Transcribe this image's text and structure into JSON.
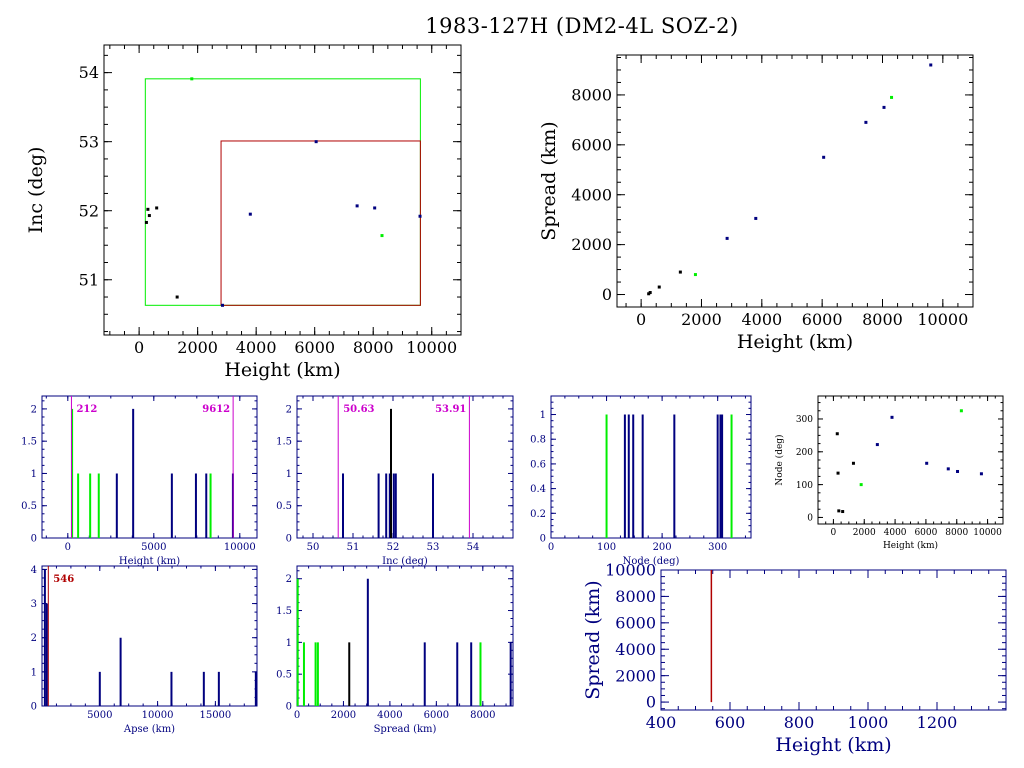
{
  "title": "1983-127H (DM2-4L SOZ-2)",
  "colors": {
    "black": "#000000",
    "blue": "#00007f",
    "green": "#00ee00",
    "red": "#b00000",
    "magenta": "#cc00cc",
    "axis_blue": "#00007f"
  },
  "chart_data": [
    {
      "id": "inc_height",
      "type": "scatter",
      "xlabel": "Height (km)",
      "ylabel": "Inc (deg)",
      "xlim": [
        -1200,
        11000
      ],
      "ylim": [
        50.2,
        54.4
      ],
      "xticks": [
        0,
        2000,
        4000,
        6000,
        8000,
        10000
      ],
      "yticks": [
        51,
        52,
        53,
        54
      ],
      "points": [
        {
          "x": 250,
          "y": 51.83,
          "c": "black"
        },
        {
          "x": 300,
          "y": 52.02,
          "c": "black"
        },
        {
          "x": 350,
          "y": 51.93,
          "c": "black"
        },
        {
          "x": 600,
          "y": 52.04,
          "c": "black"
        },
        {
          "x": 1300,
          "y": 50.75,
          "c": "black"
        },
        {
          "x": 1800,
          "y": 53.91,
          "c": "green"
        },
        {
          "x": 2850,
          "y": 50.63,
          "c": "blue"
        },
        {
          "x": 3800,
          "y": 51.95,
          "c": "blue"
        },
        {
          "x": 6050,
          "y": 53.0,
          "c": "blue"
        },
        {
          "x": 7450,
          "y": 52.07,
          "c": "blue"
        },
        {
          "x": 8050,
          "y": 52.04,
          "c": "blue"
        },
        {
          "x": 8300,
          "y": 51.64,
          "c": "green"
        },
        {
          "x": 9600,
          "y": 51.92,
          "c": "blue"
        }
      ],
      "boxes": [
        {
          "x0": 212,
          "x1": 9612,
          "y0": 50.63,
          "y1": 53.91,
          "c": "green"
        },
        {
          "x0": 2800,
          "x1": 9612,
          "y0": 50.63,
          "y1": 53.01,
          "c": "red"
        }
      ]
    },
    {
      "id": "spread_height",
      "type": "scatter",
      "xlabel": "Height (km)",
      "ylabel": "Spread (km)",
      "xlim": [
        -800,
        11000
      ],
      "ylim": [
        -500,
        9600
      ],
      "xticks": [
        0,
        2000,
        4000,
        6000,
        8000,
        10000
      ],
      "yticks": [
        0,
        2000,
        4000,
        6000,
        8000
      ],
      "points": [
        {
          "x": 250,
          "y": 30,
          "c": "black"
        },
        {
          "x": 300,
          "y": 80,
          "c": "black"
        },
        {
          "x": 600,
          "y": 300,
          "c": "black"
        },
        {
          "x": 1300,
          "y": 900,
          "c": "black"
        },
        {
          "x": 1800,
          "y": 800,
          "c": "green"
        },
        {
          "x": 2850,
          "y": 2250,
          "c": "blue"
        },
        {
          "x": 3800,
          "y": 3050,
          "c": "blue"
        },
        {
          "x": 6050,
          "y": 5500,
          "c": "blue"
        },
        {
          "x": 7450,
          "y": 6900,
          "c": "blue"
        },
        {
          "x": 8050,
          "y": 7500,
          "c": "blue"
        },
        {
          "x": 8300,
          "y": 7900,
          "c": "green"
        },
        {
          "x": 9600,
          "y": 9200,
          "c": "blue"
        }
      ]
    },
    {
      "id": "hist_height",
      "type": "bar",
      "xlabel": "Height (km)",
      "xlim": [
        -1500,
        11000
      ],
      "ylim": [
        0,
        2.2
      ],
      "xticks": [
        0,
        5000,
        10000
      ],
      "yticks": [
        0,
        0.5,
        1,
        1.5,
        2
      ],
      "ytick_labels": [
        "0",
        "0.5",
        "1",
        "1.5",
        "2"
      ],
      "bars": [
        {
          "x": 250,
          "h": 2,
          "c": "green"
        },
        {
          "x": 600,
          "h": 1,
          "c": "green"
        },
        {
          "x": 1300,
          "h": 1,
          "c": "green"
        },
        {
          "x": 1800,
          "h": 1,
          "c": "green"
        },
        {
          "x": 2850,
          "h": 1,
          "c": "blue"
        },
        {
          "x": 3800,
          "h": 2,
          "c": "blue"
        },
        {
          "x": 6050,
          "h": 1,
          "c": "blue"
        },
        {
          "x": 7450,
          "h": 1,
          "c": "blue"
        },
        {
          "x": 8050,
          "h": 1,
          "c": "blue"
        },
        {
          "x": 8300,
          "h": 1,
          "c": "green"
        },
        {
          "x": 9600,
          "h": 1,
          "c": "blue"
        }
      ],
      "markers": [
        {
          "x": 212,
          "label": "212",
          "c": "magenta"
        },
        {
          "x": 9612,
          "label": "9612",
          "c": "magenta"
        }
      ]
    },
    {
      "id": "hist_inc",
      "type": "bar",
      "xlabel": "Inc (deg)",
      "xlim": [
        49.6,
        55.0
      ],
      "ylim": [
        0,
        2.2
      ],
      "xticks": [
        50,
        51,
        52,
        53,
        54
      ],
      "yticks": [
        0,
        0.5,
        1,
        1.5,
        2
      ],
      "ytick_labels": [
        "0",
        "0.5",
        "1",
        "1.5",
        "2"
      ],
      "bars": [
        {
          "x": 50.75,
          "h": 1,
          "c": "blue"
        },
        {
          "x": 51.64,
          "h": 1,
          "c": "blue"
        },
        {
          "x": 51.83,
          "h": 1,
          "c": "blue"
        },
        {
          "x": 51.92,
          "h": 1,
          "c": "blue"
        },
        {
          "x": 51.95,
          "h": 2,
          "c": "black"
        },
        {
          "x": 52.02,
          "h": 1,
          "c": "blue"
        },
        {
          "x": 52.07,
          "h": 1,
          "c": "blue"
        },
        {
          "x": 53.0,
          "h": 1,
          "c": "blue"
        }
      ],
      "markers": [
        {
          "x": 50.63,
          "label": "50.63",
          "c": "magenta"
        },
        {
          "x": 53.91,
          "label": "53.91",
          "c": "magenta"
        }
      ]
    },
    {
      "id": "hist_node",
      "type": "bar",
      "xlabel": "Node (deg)",
      "xlim": [
        0,
        360
      ],
      "ylim": [
        0,
        1.15
      ],
      "xticks": [
        0,
        100,
        200,
        300
      ],
      "yticks": [
        0,
        0.2,
        0.4,
        0.6,
        0.8,
        1
      ],
      "ytick_labels": [
        "0",
        "0.2",
        "0.4",
        "0.6",
        "0.8",
        "1"
      ],
      "bars": [
        {
          "x": 100,
          "h": 1,
          "c": "green"
        },
        {
          "x": 133,
          "h": 1,
          "c": "blue"
        },
        {
          "x": 140,
          "h": 1,
          "c": "blue"
        },
        {
          "x": 148,
          "h": 1,
          "c": "blue"
        },
        {
          "x": 165,
          "h": 1,
          "c": "blue"
        },
        {
          "x": 222,
          "h": 1,
          "c": "blue"
        },
        {
          "x": 300,
          "h": 1,
          "c": "blue"
        },
        {
          "x": 305,
          "h": 1,
          "c": "blue"
        },
        {
          "x": 308,
          "h": 1,
          "c": "blue"
        },
        {
          "x": 325,
          "h": 1,
          "c": "green"
        }
      ]
    },
    {
      "id": "node_height",
      "type": "scatter",
      "xlabel": "Height (km)",
      "ylabel": "Node (deg)",
      "xlim": [
        -1000,
        11000
      ],
      "ylim": [
        -20,
        370
      ],
      "xticks": [
        0,
        2000,
        4000,
        6000,
        8000,
        10000
      ],
      "yticks": [
        0,
        100,
        200,
        300
      ],
      "points": [
        {
          "x": 250,
          "y": 255,
          "c": "black"
        },
        {
          "x": 300,
          "y": 135,
          "c": "black"
        },
        {
          "x": 350,
          "y": 20,
          "c": "black"
        },
        {
          "x": 600,
          "y": 18,
          "c": "black"
        },
        {
          "x": 1300,
          "y": 165,
          "c": "black"
        },
        {
          "x": 1800,
          "y": 100,
          "c": "green"
        },
        {
          "x": 2850,
          "y": 222,
          "c": "blue"
        },
        {
          "x": 3800,
          "y": 305,
          "c": "blue"
        },
        {
          "x": 6050,
          "y": 165,
          "c": "blue"
        },
        {
          "x": 7450,
          "y": 148,
          "c": "blue"
        },
        {
          "x": 8050,
          "y": 140,
          "c": "blue"
        },
        {
          "x": 8300,
          "y": 325,
          "c": "green"
        },
        {
          "x": 9600,
          "y": 133,
          "c": "blue"
        }
      ]
    },
    {
      "id": "hist_apse",
      "type": "bar",
      "xlabel": "Apse (km)",
      "xlim": [
        0,
        18600
      ],
      "ylim": [
        0,
        4.1
      ],
      "xticks": [
        5000,
        10000,
        15000
      ],
      "yticks": [
        0,
        1,
        2,
        3,
        4
      ],
      "ytick_labels": [
        "0",
        "1",
        "2",
        "3",
        "4"
      ],
      "bars": [
        {
          "x": 250,
          "h": 4,
          "c": "blue"
        },
        {
          "x": 420,
          "h": 3,
          "c": "blue"
        },
        {
          "x": 5000,
          "h": 1,
          "c": "blue"
        },
        {
          "x": 6800,
          "h": 2,
          "c": "blue"
        },
        {
          "x": 11200,
          "h": 1,
          "c": "blue"
        },
        {
          "x": 14000,
          "h": 1,
          "c": "blue"
        },
        {
          "x": 15300,
          "h": 1,
          "c": "blue"
        },
        {
          "x": 18500,
          "h": 1,
          "c": "blue"
        }
      ],
      "markers": [
        {
          "x": 546,
          "label": "546",
          "c": "red"
        }
      ]
    },
    {
      "id": "hist_spread",
      "type": "bar",
      "xlabel": "Spread (km)",
      "xlim": [
        0,
        9300
      ],
      "ylim": [
        0,
        2.2
      ],
      "xticks": [
        0,
        2000,
        4000,
        6000,
        8000
      ],
      "yticks": [
        0,
        0.5,
        1,
        1.5,
        2
      ],
      "ytick_labels": [
        "0",
        "0.5",
        "1",
        "1.5",
        "2"
      ],
      "bars": [
        {
          "x": 30,
          "h": 2,
          "c": "green"
        },
        {
          "x": 300,
          "h": 1,
          "c": "green"
        },
        {
          "x": 800,
          "h": 1,
          "c": "green"
        },
        {
          "x": 900,
          "h": 1,
          "c": "green"
        },
        {
          "x": 2250,
          "h": 1,
          "c": "black"
        },
        {
          "x": 3050,
          "h": 2,
          "c": "blue"
        },
        {
          "x": 5500,
          "h": 1,
          "c": "blue"
        },
        {
          "x": 6900,
          "h": 1,
          "c": "blue"
        },
        {
          "x": 7500,
          "h": 1,
          "c": "blue"
        },
        {
          "x": 7900,
          "h": 1,
          "c": "green"
        },
        {
          "x": 9200,
          "h": 1,
          "c": "blue"
        }
      ]
    },
    {
      "id": "spread_height_zoom",
      "type": "line",
      "xlabel": "Height (km)",
      "ylabel": "Spread (km)",
      "xlim": [
        400,
        1400
      ],
      "ylim": [
        -600,
        10000
      ],
      "xticks": [
        400,
        600,
        800,
        1000,
        1200
      ],
      "yticks": [
        0,
        2000,
        4000,
        6000,
        8000,
        10000
      ],
      "lines": [
        {
          "x": 546,
          "y0": 0,
          "y1": 10000,
          "c": "red"
        }
      ]
    }
  ]
}
